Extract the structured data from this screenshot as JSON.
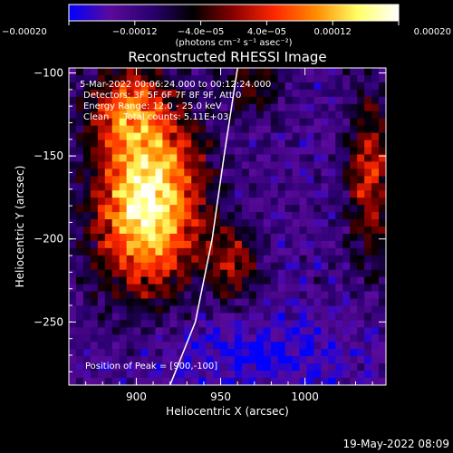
{
  "chart_data": {
    "type": "heatmap",
    "title": "Reconstructed RHESSI Image",
    "xlabel": "Heliocentric X (arcsec)",
    "ylabel": "Heliocentric Y (arcsec)",
    "xlim": [
      860,
      1048
    ],
    "ylim": [
      -288,
      -97
    ],
    "x_ticks": [
      900,
      950,
      1000
    ],
    "y_ticks": [
      -100,
      -150,
      -200,
      -250
    ],
    "x_tick_labels": [
      "900",
      "950",
      "1000"
    ],
    "y_tick_labels": [
      "−100",
      "−150",
      "−200",
      "−250"
    ],
    "colorbar": {
      "range": [
        -0.0002,
        0.0002
      ],
      "ticks": [
        -0.0002,
        -0.00012,
        -4e-05,
        4e-05,
        0.00012,
        0.0002
      ],
      "tick_labels": [
        "−0.00020",
        "−0.00012",
        "−4.0e−05",
        "4.0e−05",
        "0.00012",
        "0.00020"
      ],
      "unit_label": "(photons cm⁻² s⁻¹ asec⁻²)",
      "colormap": [
        "#0000ff",
        "#5a0a9a",
        "#2a0070",
        "#000000",
        "#8b0000",
        "#ff2800",
        "#ff8c00",
        "#ffff66",
        "#ffffff"
      ]
    },
    "annotations": [
      "5-Mar-2022 00:06:24.000 to 00:12:24.000",
      "Detectors: 3F 5F 6F 7F 8F 9F, Att 0",
      "Energy Range: 12.0 - 25.0 keV",
      "Clean     Total counts: 5.11E+03"
    ],
    "peak_label": "Position of Peak = [900,-100]",
    "peak_position": [
      900,
      -100
    ],
    "limb_curve": [
      [
        920,
        -288
      ],
      [
        935,
        -250
      ],
      [
        945,
        -200
      ],
      [
        952,
        -150
      ],
      [
        960,
        -97
      ]
    ]
  },
  "footer": {
    "timestamp": "19-May-2022 08:09"
  }
}
